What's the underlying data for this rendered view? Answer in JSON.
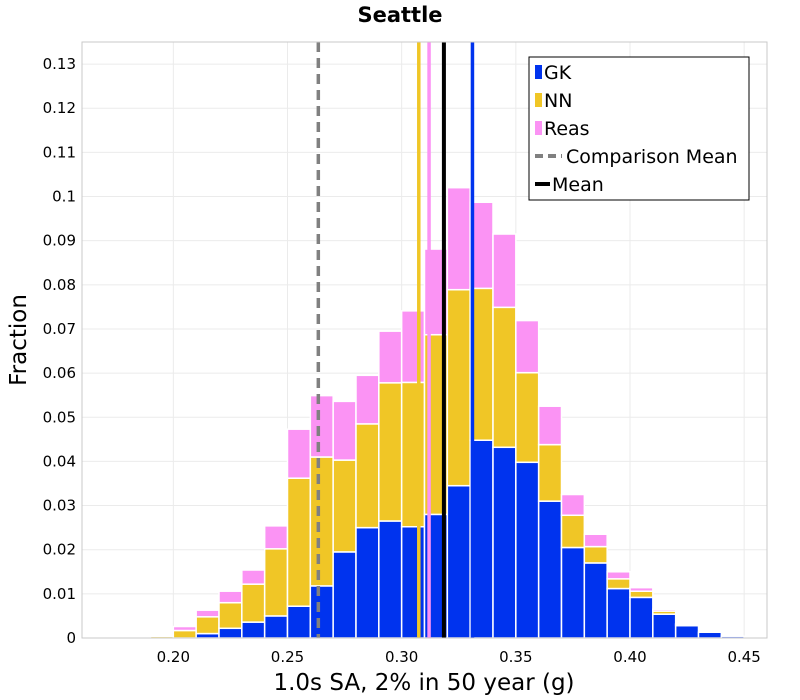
{
  "chart_data": {
    "type": "bar",
    "title": "Seattle",
    "xlabel": "1.0s SA, 2% in 50 year (g)",
    "ylabel": "Fraction",
    "xlim": [
      0.16,
      0.46
    ],
    "ylim": [
      0,
      0.135
    ],
    "x_ticks": [
      "0.20",
      "0.25",
      "0.30",
      "0.35",
      "0.40",
      "0.45"
    ],
    "y_ticks": [
      "0",
      "0.01",
      "0.02",
      "0.03",
      "0.04",
      "0.05",
      "0.06",
      "0.07",
      "0.08",
      "0.09",
      "0.1",
      "0.11",
      "0.12",
      "0.13"
    ],
    "stacked": true,
    "bin_width": 0.01,
    "bin_centers": [
      0.175,
      0.185,
      0.195,
      0.205,
      0.215,
      0.225,
      0.235,
      0.245,
      0.255,
      0.265,
      0.275,
      0.285,
      0.295,
      0.305,
      0.315,
      0.325,
      0.335,
      0.345,
      0.355,
      0.365,
      0.375,
      0.385,
      0.395,
      0.405,
      0.415,
      0.425,
      0.435,
      0.445,
      0.455
    ],
    "series": [
      {
        "name": "GK",
        "color": "#0033ee",
        "values": [
          0,
          0,
          0,
          0,
          0.001,
          0.0022,
          0.0036,
          0.005,
          0.0072,
          0.0118,
          0.0195,
          0.025,
          0.0265,
          0.0252,
          0.028,
          0.0345,
          0.0448,
          0.0432,
          0.0398,
          0.031,
          0.0205,
          0.017,
          0.0112,
          0.0092,
          0.0054,
          0.0028,
          0.0013,
          0.0004,
          0.0001
        ]
      },
      {
        "name": "NN",
        "color": "#f0c626",
        "values": [
          0,
          0,
          0.0004,
          0.0017,
          0.0038,
          0.0058,
          0.0086,
          0.0152,
          0.029,
          0.0292,
          0.0208,
          0.0235,
          0.0313,
          0.0327,
          0.0407,
          0.0444,
          0.0344,
          0.0317,
          0.0203,
          0.0128,
          0.0073,
          0.0037,
          0.0022,
          0.0014,
          0.0007,
          0.0003,
          0,
          0,
          0
        ]
      },
      {
        "name": "Reas",
        "color": "#fb93f4",
        "values": [
          0,
          0,
          0.0001,
          0.0009,
          0.0015,
          0.0026,
          0.0032,
          0.0052,
          0.0111,
          0.0139,
          0.0133,
          0.011,
          0.0117,
          0.0162,
          0.0194,
          0.0231,
          0.0195,
          0.0166,
          0.0118,
          0.0087,
          0.0047,
          0.0028,
          0.0016,
          0.0008,
          0.0004,
          0.0001,
          0,
          0,
          0
        ]
      }
    ],
    "vertical_lines": [
      {
        "series": "GK",
        "x": 0.331,
        "color": "#0033ee",
        "style": "solid"
      },
      {
        "series": "NN",
        "x": 0.3075,
        "color": "#f0c626",
        "style": "solid"
      },
      {
        "series": "Reas",
        "x": 0.312,
        "color": "#fb93f4",
        "style": "solid"
      },
      {
        "series": "Comparison Mean",
        "x": 0.2635,
        "color": "#808080",
        "style": "dashed"
      },
      {
        "series": "Mean",
        "x": 0.3185,
        "color": "#000000",
        "style": "solid"
      }
    ],
    "legend": {
      "position": "top-right",
      "entries": [
        {
          "label": "GK",
          "kind": "box",
          "color": "#0033ee"
        },
        {
          "label": "NN",
          "kind": "box",
          "color": "#f0c626"
        },
        {
          "label": "Reas",
          "kind": "box",
          "color": "#fb93f4"
        },
        {
          "label": "Comparison Mean",
          "kind": "dashed-line",
          "color": "#808080"
        },
        {
          "label": "Mean",
          "kind": "line",
          "color": "#000000"
        }
      ]
    },
    "grid": true
  }
}
